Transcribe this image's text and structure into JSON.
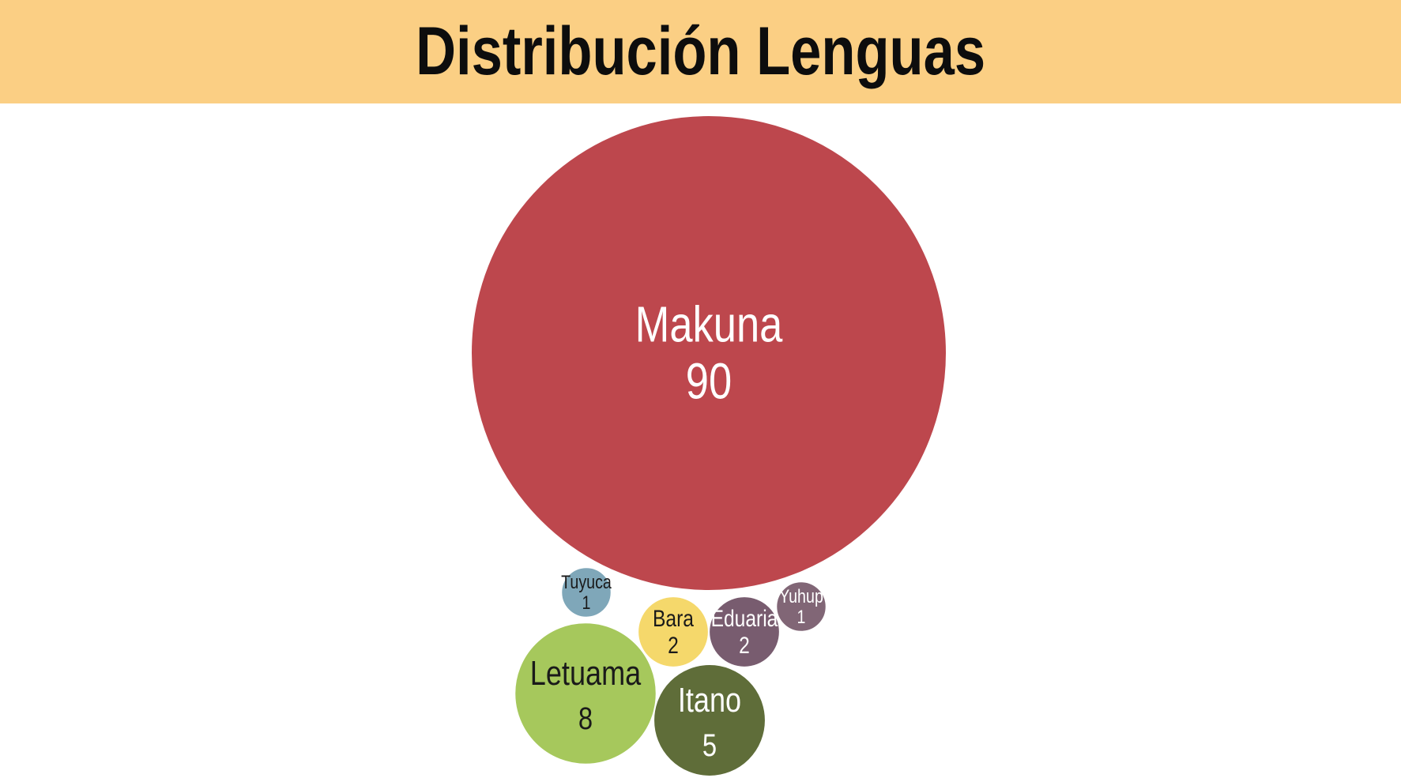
{
  "colors": {
    "title_bar": "#fbcf84",
    "title_text": "#0d0d0d"
  },
  "chart_data": {
    "type": "bubble",
    "title": "Distribución Lenguas",
    "items": [
      {
        "name": "Makuna",
        "value": 90,
        "color": "#bd474d",
        "label_color": "#ffffff"
      },
      {
        "name": "Letuama",
        "value": 8,
        "color": "#a6c85c",
        "label_color": "#1a1a1a"
      },
      {
        "name": "Itano",
        "value": 5,
        "color": "#5f6d39",
        "label_color": "#ffffff"
      },
      {
        "name": "Bara",
        "value": 2,
        "color": "#f5d86b",
        "label_color": "#1a1a1a"
      },
      {
        "name": "Eduaria",
        "value": 2,
        "color": "#785c6f",
        "label_color": "#ffffff"
      },
      {
        "name": "Tuyuca",
        "value": 1,
        "color": "#7fa7b9",
        "label_color": "#1a1a1a"
      },
      {
        "name": "Yuhup",
        "value": 1,
        "color": "#816676",
        "label_color": "#ffffff"
      }
    ]
  }
}
